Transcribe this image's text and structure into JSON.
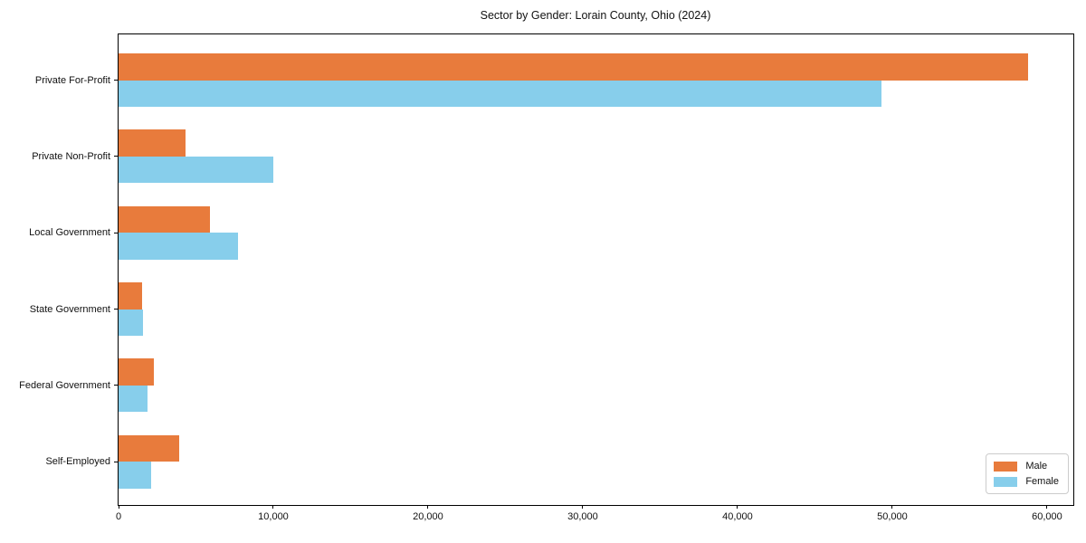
{
  "title": "Sector by Gender: Lorain County, Ohio (2024)",
  "chart_data": {
    "type": "bar",
    "orientation": "horizontal",
    "title": "Sector by Gender: Lorain County, Ohio (2024)",
    "categories": [
      "Private For-Profit",
      "Private Non-Profit",
      "Local Government",
      "State Government",
      "Federal Government",
      "Self-Employed"
    ],
    "series": [
      {
        "name": "Male",
        "color": "#e87b3c",
        "values": [
          58800,
          4300,
          5900,
          1500,
          2300,
          3900
        ]
      },
      {
        "name": "Female",
        "color": "#87ceeb",
        "values": [
          49300,
          10000,
          7700,
          1600,
          1900,
          2100
        ]
      }
    ],
    "xlabel": "",
    "ylabel": "",
    "xlim": [
      0,
      61700
    ],
    "xticks": [
      0,
      10000,
      20000,
      30000,
      40000,
      50000,
      60000
    ],
    "xtick_labels": [
      "0",
      "10,000",
      "20,000",
      "30,000",
      "40,000",
      "50,000",
      "60,000"
    ],
    "grid": false,
    "legend": {
      "position": "lower right",
      "entries": [
        {
          "label": "Male",
          "color": "#e87b3c"
        },
        {
          "label": "Female",
          "color": "#87ceeb"
        }
      ]
    }
  }
}
